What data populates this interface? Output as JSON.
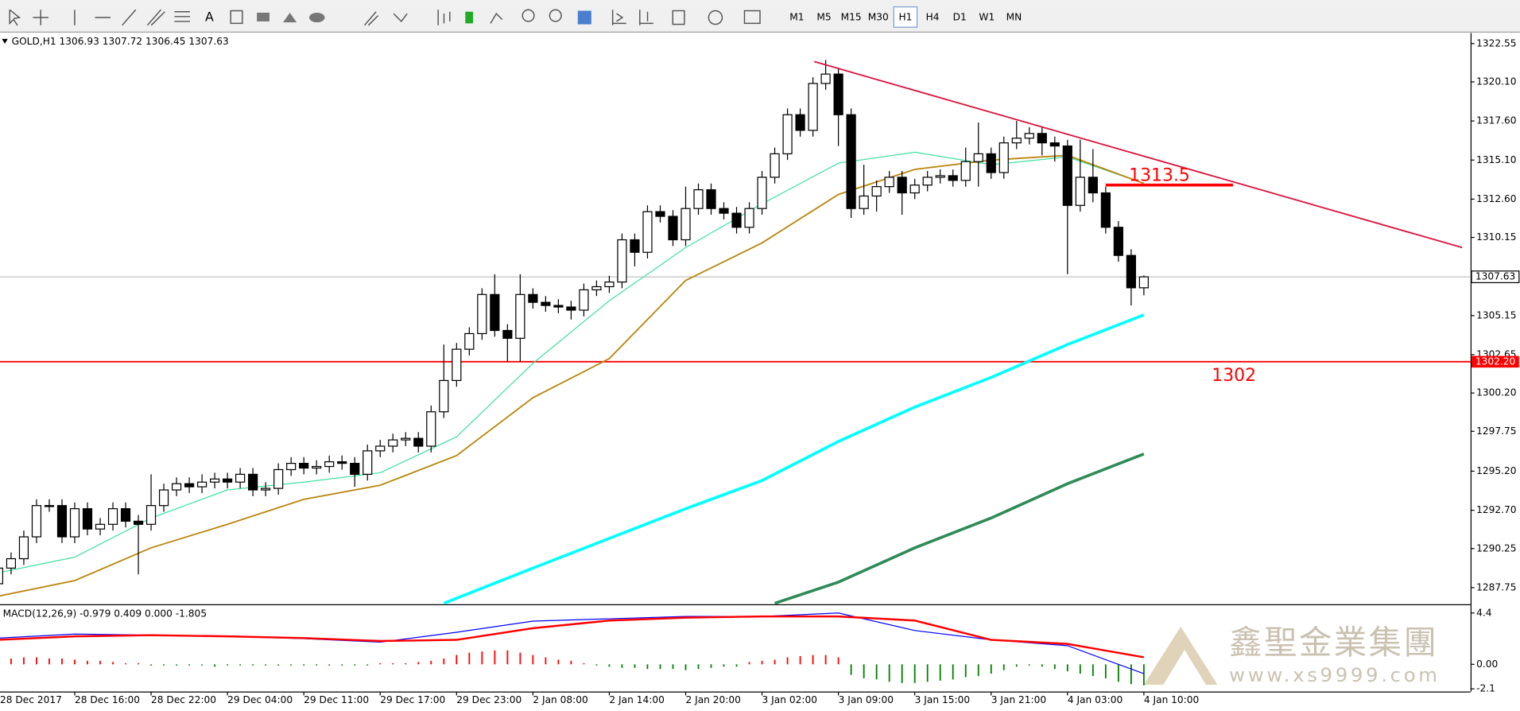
{
  "toolbar": {
    "timeframes": [
      "M1",
      "M5",
      "M15",
      "M30",
      "H1",
      "H4",
      "D1",
      "W1",
      "MN"
    ],
    "active": "H1"
  },
  "chart_data": [
    {
      "type": "candlestick",
      "title": "GOLD,H1  1306.93 1307.72 1306.45 1307.63",
      "categories": [
        "28 Dec 2017",
        null,
        null,
        null,
        null,
        null,
        "28 Dec 16:00",
        null,
        null,
        null,
        null,
        null,
        "28 Dec 22:00",
        null,
        null,
        null,
        null,
        null,
        "29 Dec 04:00",
        null,
        null,
        null,
        null,
        null,
        "29 Dec 11:00",
        null,
        null,
        null,
        null,
        null,
        "29 Dec 17:00",
        null,
        null,
        null,
        null,
        null,
        "29 Dec 23:00",
        null,
        null,
        null,
        null,
        null,
        "2 Jan 08:00",
        null,
        null,
        null,
        null,
        null,
        "2 Jan 14:00",
        null,
        null,
        null,
        null,
        null,
        "2 Jan 20:00",
        null,
        null,
        null,
        null,
        null,
        "3 Jan 02:00",
        null,
        null,
        null,
        null,
        null,
        "3 Jan 09:00",
        null,
        null,
        null,
        null,
        null,
        "3 Jan 15:00",
        null,
        null,
        null,
        null,
        null,
        "3 Jan 21:00",
        null,
        null,
        null,
        null,
        null,
        "4 Jan 03:00",
        null,
        null,
        null,
        null,
        null,
        "4 Jan 10:00"
      ],
      "open": [
        1288.0,
        1289.0,
        1289.6,
        1291.0,
        1293.0,
        1293.0,
        1291.0,
        1292.8,
        1291.5,
        1291.8,
        1292.8,
        1292.0,
        1291.8,
        1293.0,
        1294.0,
        1294.4,
        1294.2,
        1294.5,
        1294.7,
        1294.5,
        1295.0,
        1294.0,
        1294.1,
        1295.3,
        1295.7,
        1295.4,
        1295.5,
        1295.8,
        1295.7,
        1295.0,
        1296.5,
        1296.8,
        1297.2,
        1297.3,
        1296.8,
        1299.0,
        1301.0,
        1303.0,
        1304.0,
        1306.5,
        1304.2,
        1303.7,
        1306.5,
        1306.0,
        1305.8,
        1305.7,
        1305.5,
        1306.8,
        1307.0,
        1307.3,
        1310.0,
        1309.2,
        1311.8,
        1311.5,
        1310.0,
        1312.0,
        1313.2,
        1312.0,
        1311.7,
        1310.8,
        1312.0,
        1314.0,
        1315.5,
        1318.0,
        1317.0,
        1320.0,
        1320.6,
        1318.0,
        1312.0,
        1312.8,
        1313.4,
        1314.0,
        1313.0,
        1313.5,
        1314.0,
        1314.1,
        1313.8,
        1315.0,
        1315.5,
        1314.3,
        1316.2,
        1316.5,
        1316.8,
        1316.2,
        1316.0,
        1312.2,
        1314.0,
        1313.0,
        1310.8,
        1309.0,
        1306.93
      ],
      "high": [
        1289.4,
        1290.0,
        1291.4,
        1293.4,
        1293.4,
        1293.4,
        1293.2,
        1293.2,
        1292.2,
        1293.2,
        1293.2,
        1292.4,
        1295.0,
        1294.4,
        1294.8,
        1294.8,
        1295.0,
        1295.1,
        1295.1,
        1295.4,
        1295.4,
        1294.5,
        1295.7,
        1296.1,
        1296.1,
        1295.9,
        1296.2,
        1296.2,
        1296.1,
        1296.9,
        1297.2,
        1297.6,
        1297.7,
        1297.7,
        1299.4,
        1303.3,
        1303.4,
        1304.4,
        1306.9,
        1307.8,
        1304.6,
        1307.8,
        1306.9,
        1306.4,
        1306.2,
        1306.1,
        1307.2,
        1307.4,
        1307.7,
        1310.4,
        1310.4,
        1312.2,
        1312.2,
        1311.9,
        1313.4,
        1313.6,
        1313.6,
        1312.4,
        1312.1,
        1312.4,
        1314.4,
        1315.9,
        1318.4,
        1318.4,
        1320.4,
        1321.5,
        1321.0,
        1318.4,
        1314.8,
        1313.8,
        1314.4,
        1314.4,
        1313.9,
        1314.4,
        1314.5,
        1314.5,
        1315.9,
        1317.5,
        1315.9,
        1316.6,
        1317.6,
        1317.2,
        1317.2,
        1316.6,
        1316.4,
        1316.4,
        1315.8,
        1313.4,
        1311.2,
        1309.4,
        1307.72
      ],
      "low": [
        1287.6,
        1288.6,
        1289.2,
        1290.6,
        1292.6,
        1290.6,
        1290.6,
        1291.1,
        1291.1,
        1291.4,
        1291.6,
        1288.6,
        1291.4,
        1292.6,
        1293.6,
        1293.8,
        1293.8,
        1294.1,
        1294.1,
        1294.1,
        1293.6,
        1293.6,
        1293.7,
        1294.9,
        1295.0,
        1295.0,
        1295.1,
        1295.3,
        1294.2,
        1294.6,
        1296.1,
        1296.4,
        1296.8,
        1296.4,
        1296.4,
        1298.6,
        1300.6,
        1302.6,
        1303.6,
        1303.8,
        1302.2,
        1302.2,
        1305.6,
        1305.4,
        1305.3,
        1304.9,
        1305.1,
        1306.4,
        1306.6,
        1306.9,
        1308.3,
        1308.8,
        1311.1,
        1309.6,
        1309.6,
        1311.6,
        1311.6,
        1311.3,
        1310.4,
        1310.4,
        1311.6,
        1313.6,
        1315.1,
        1316.6,
        1316.6,
        1319.6,
        1316.0,
        1311.4,
        1311.6,
        1311.8,
        1313.0,
        1311.6,
        1312.6,
        1313.1,
        1313.6,
        1313.4,
        1313.4,
        1313.4,
        1313.9,
        1313.9,
        1315.8,
        1316.1,
        1315.4,
        1315.0,
        1307.8,
        1311.8,
        1312.4,
        1310.4,
        1308.6,
        1305.8,
        1306.45
      ],
      "close": [
        1289.0,
        1289.6,
        1291.0,
        1293.0,
        1293.0,
        1291.0,
        1292.8,
        1291.5,
        1291.8,
        1292.8,
        1292.0,
        1291.8,
        1293.0,
        1294.0,
        1294.4,
        1294.2,
        1294.5,
        1294.7,
        1294.5,
        1295.0,
        1294.0,
        1294.1,
        1295.3,
        1295.7,
        1295.4,
        1295.5,
        1295.8,
        1295.7,
        1295.0,
        1296.5,
        1296.8,
        1297.2,
        1297.3,
        1296.8,
        1299.0,
        1301.0,
        1303.0,
        1304.0,
        1306.5,
        1304.2,
        1303.7,
        1306.5,
        1306.0,
        1305.8,
        1305.7,
        1305.5,
        1306.8,
        1307.0,
        1307.3,
        1310.0,
        1309.2,
        1311.8,
        1311.5,
        1310.0,
        1312.0,
        1313.2,
        1312.0,
        1311.7,
        1310.8,
        1312.0,
        1314.0,
        1315.5,
        1318.0,
        1317.0,
        1320.0,
        1320.6,
        1318.0,
        1312.0,
        1312.8,
        1313.4,
        1314.0,
        1313.0,
        1313.5,
        1314.0,
        1314.1,
        1313.8,
        1315.0,
        1315.5,
        1314.3,
        1316.2,
        1316.5,
        1316.8,
        1316.2,
        1316.0,
        1312.2,
        1314.0,
        1313.0,
        1310.8,
        1309.0,
        1306.93,
        1307.63
      ],
      "up_color": "#ffffff",
      "down_color": "#000000",
      "overlays": [
        {
          "color": "#40e0a0",
          "width": 1,
          "x": [
            0,
            6,
            12,
            18,
            24,
            30,
            36,
            42,
            48,
            54,
            60,
            66,
            72,
            78,
            84,
            90
          ],
          "values": [
            1288.7,
            1289.7,
            1292.2,
            1294.0,
            1294.5,
            1295.1,
            1297.4,
            1302.1,
            1306.1,
            1309.5,
            1312.3,
            1314.9,
            1315.6,
            1314.8,
            1315.3,
            1313.6
          ]
        },
        {
          "color": "#b8860b",
          "width": 1.5,
          "x": [
            0,
            6,
            12,
            18,
            24,
            30,
            36,
            42,
            48,
            54,
            60,
            66,
            72,
            78,
            84,
            90
          ],
          "values": [
            1287.2,
            1288.2,
            1290.3,
            1291.8,
            1293.4,
            1294.3,
            1296.2,
            1299.9,
            1302.4,
            1307.4,
            1309.8,
            1312.9,
            1314.5,
            1315.1,
            1315.4,
            1313.6
          ]
        },
        {
          "color": "#00ffff",
          "width": 3,
          "x": [
            35,
            42,
            48,
            54,
            60,
            66,
            72,
            78,
            84,
            90
          ],
          "values": [
            1286.75,
            1289.0,
            1290.9,
            1292.8,
            1294.6,
            1297.1,
            1299.3,
            1301.2,
            1303.3,
            1305.2
          ]
        },
        {
          "color": "#2e8b57",
          "width": 3,
          "x": [
            61,
            66,
            72,
            78,
            84,
            90
          ],
          "values": [
            1286.75,
            1288.1,
            1290.3,
            1292.2,
            1294.4,
            1296.3
          ]
        }
      ],
      "trendline": {
        "color": "#dc143c",
        "x": [
          64.1,
          115
        ],
        "values": [
          1321.4,
          1309.5
        ]
      },
      "resistance": {
        "color": "#ff0000",
        "x": [
          87,
          97
        ],
        "value": 1313.5,
        "label": "1313.5"
      },
      "support": {
        "color": "#ff0000",
        "value": {
          "value": 1302.2,
          "label": "1302.20"
        },
        "label": "1302"
      },
      "price_line": {
        "color": "#c0c0c0",
        "value": 1307.63
      },
      "ylim": [
        1286.75,
        1323.1
      ],
      "yticks": [
        1322.55,
        {
          "value": 1320.1,
          "label": "1320.10"
        },
        {
          "value": 1317.6,
          "label": "1317.60"
        },
        {
          "value": 1315.1,
          "label": "1315.10"
        },
        {
          "value": 1312.6,
          "label": "1312.60"
        },
        1310.15,
        1305.15,
        1302.65,
        {
          "value": 1300.2,
          "label": "1300.20"
        },
        1297.75,
        {
          "value": 1295.2,
          "label": "1295.20"
        },
        {
          "value": 1292.7,
          "label": "1292.70"
        },
        1290.25,
        1287.75
      ],
      "grid": false
    },
    {
      "type": "macd",
      "title": "MACD(12,26,9) -0.979 0.409 0.000 -1.805",
      "histogram": [
        0.4,
        0.5,
        0.6,
        0.6,
        0.5,
        0.5,
        0.4,
        0.3,
        0.3,
        0.2,
        0.1,
        0.1,
        -0.1,
        -0.1,
        -0.1,
        -0.1,
        -0.1,
        -0.2,
        -0.1,
        -0.1,
        -0.1,
        -0.1,
        -0.1,
        -0.1,
        -0.1,
        -0.1,
        -0.1,
        -0.1,
        -0.1,
        -0.1,
        0.1,
        0.1,
        0.1,
        0.2,
        0.3,
        0.5,
        0.8,
        1.0,
        1.1,
        1.2,
        1.2,
        1.0,
        0.8,
        0.6,
        0.4,
        0.3,
        0.1,
        -0.1,
        -0.2,
        -0.3,
        -0.3,
        -0.4,
        -0.4,
        -0.4,
        -0.5,
        -0.4,
        -0.3,
        -0.2,
        -0.2,
        0.2,
        0.3,
        0.4,
        0.6,
        0.7,
        0.8,
        0.8,
        0.6,
        -0.9,
        -1.2,
        -1.3,
        -1.5,
        -1.6,
        -1.6,
        -1.5,
        -1.4,
        -1.3,
        -1.1,
        -1.0,
        -0.8,
        -0.5,
        -0.2,
        -0.1,
        -0.2,
        -0.4,
        -0.6,
        -0.8,
        -1.0,
        -1.2,
        -1.5,
        -1.7,
        -1.8
      ],
      "up_color": "#ff0000",
      "down_color": "#008000",
      "lines": [
        {
          "color": "#0000ff",
          "width": 1,
          "x": [
            0,
            6,
            12,
            18,
            24,
            30,
            36,
            42,
            48,
            54,
            60,
            66,
            72,
            78,
            84,
            90
          ],
          "values": [
            2.25,
            2.6,
            2.5,
            2.4,
            2.2,
            1.9,
            2.75,
            3.7,
            3.9,
            4.1,
            4.1,
            4.4,
            2.9,
            2.1,
            1.6,
            -0.8
          ]
        },
        {
          "color": "#ff0000",
          "width": 2,
          "x": [
            0,
            6,
            12,
            18,
            24,
            30,
            36,
            42,
            48,
            54,
            60,
            66,
            72,
            78,
            84,
            90
          ],
          "values": [
            2.1,
            2.4,
            2.5,
            2.4,
            2.25,
            2.0,
            2.1,
            3.1,
            3.75,
            4.0,
            4.1,
            4.1,
            3.75,
            2.1,
            1.75,
            0.6
          ]
        }
      ],
      "ylim": [
        -2.33,
        4.9
      ],
      "yticks": [
        4.4,
        {
          "value": 0,
          "label": "0.00"
        },
        -2.1
      ]
    }
  ],
  "watermark": {
    "name": "鑫聖金業集團",
    "url": "www.xs9999.com"
  }
}
